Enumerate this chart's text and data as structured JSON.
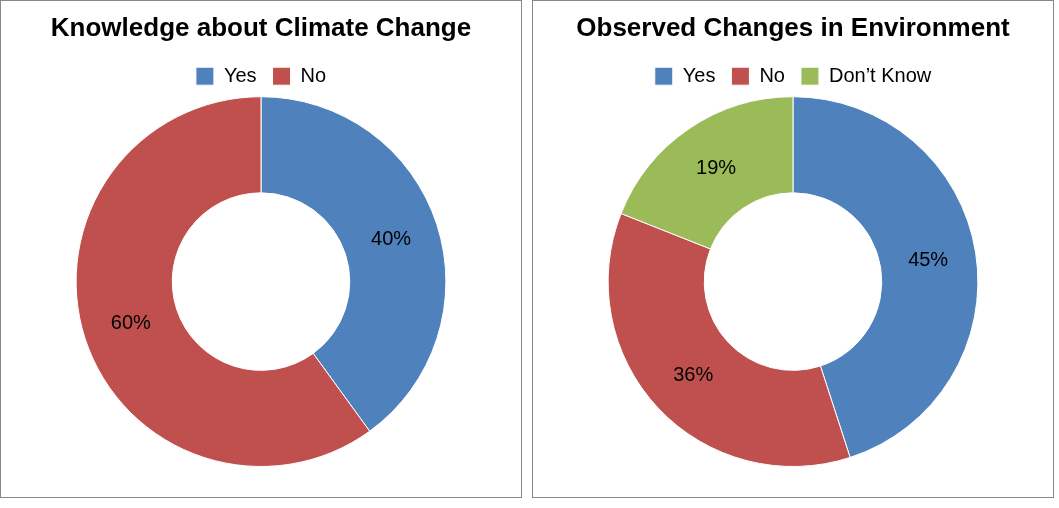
{
  "chart_data": [
    {
      "type": "donut",
      "title": "Knowledge about Climate Change",
      "categories": [
        "Yes",
        "No"
      ],
      "values": [
        40,
        60
      ],
      "colors": [
        "#4f81bd",
        "#c0504d"
      ],
      "value_labels": [
        "40%",
        "60%"
      ],
      "legend": "top"
    },
    {
      "type": "donut",
      "title": "Observed Changes in Environment",
      "categories": [
        "Yes",
        "No",
        "Don’t Know"
      ],
      "values": [
        45,
        36,
        19
      ],
      "colors": [
        "#4f81bd",
        "#c0504d",
        "#9bbb59"
      ],
      "value_labels": [
        "45%",
        "36%",
        "19%"
      ],
      "legend": "top"
    }
  ]
}
